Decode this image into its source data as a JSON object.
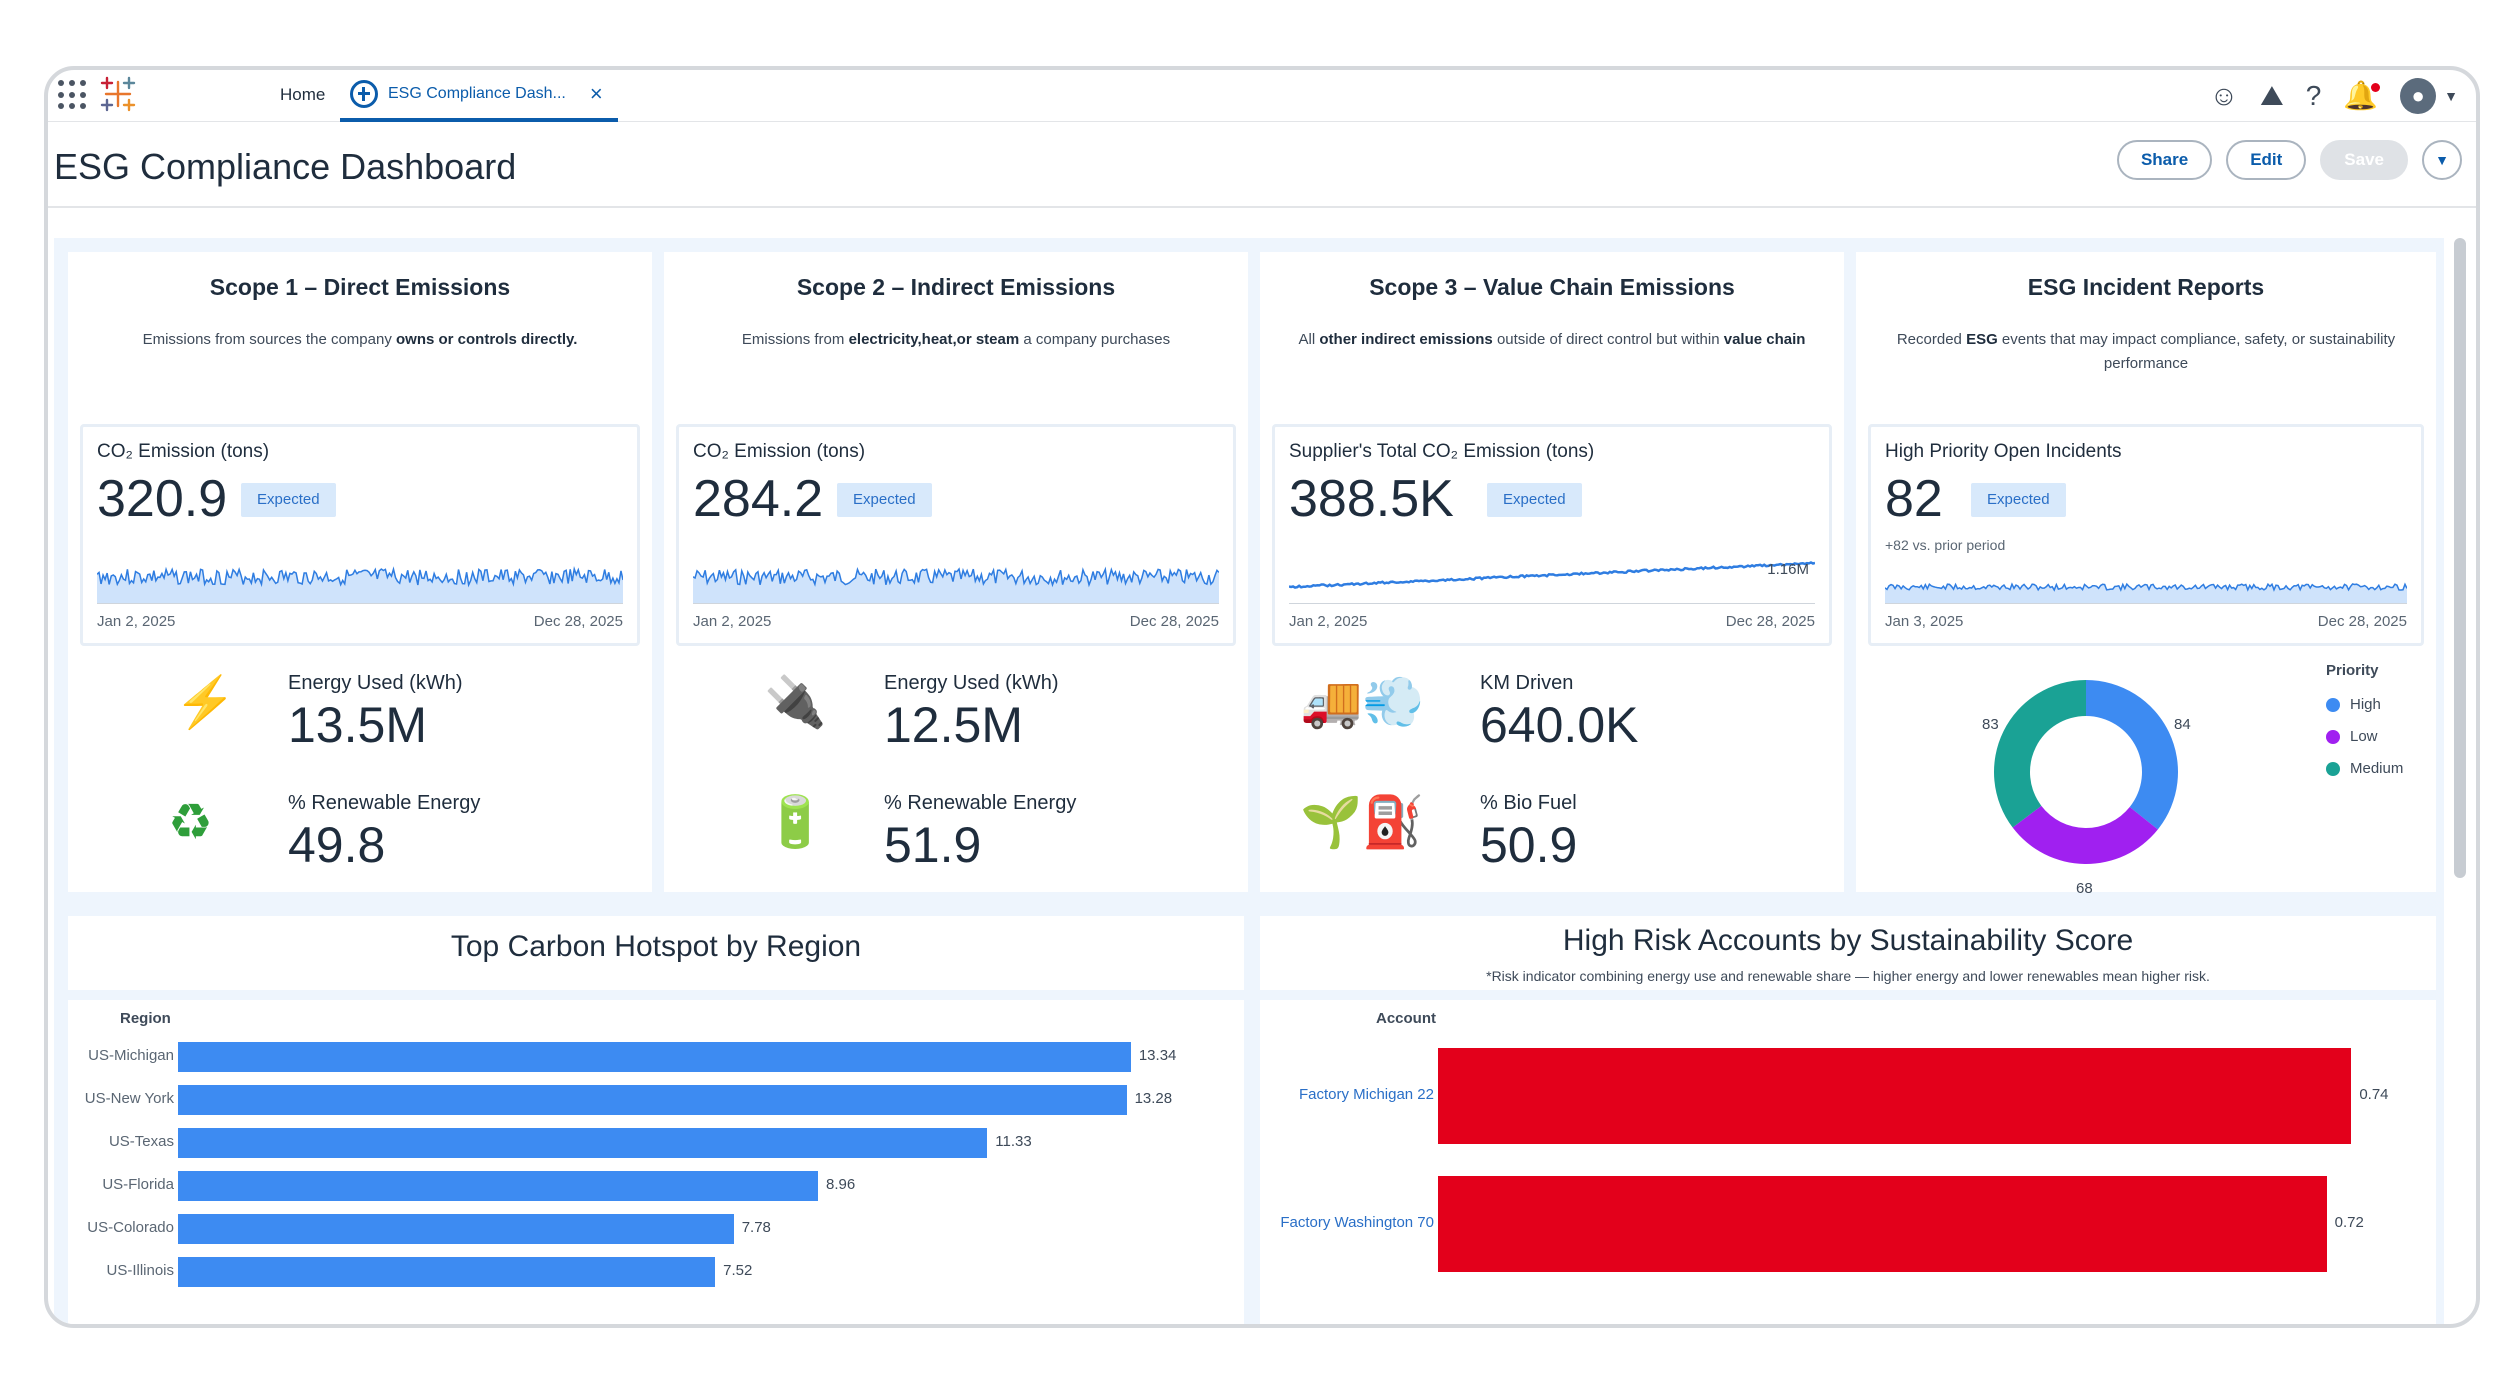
{
  "nav": {
    "home_label": "Home",
    "tab_label": "ESG Compliance Dash...",
    "tab_close": "×"
  },
  "header": {
    "title": "ESG Compliance Dashboard",
    "share_label": "Share",
    "edit_label": "Edit",
    "save_label": "Save"
  },
  "scopes": [
    {
      "title": "Scope 1 – Direct Emissions",
      "desc_html": "Emissions from sources the company <b>owns or controls directly.</b>",
      "kpi_label": "CO₂ Emission (tons)",
      "kpi_value": "320.9",
      "badge": "Expected",
      "date_start": "Jan 2, 2025",
      "date_end": "Dec 28, 2025",
      "stat1_label": "Energy Used (kWh)",
      "stat1_value": "13.5M",
      "stat1_icon": "lightning-icon",
      "stat2_label": "% Renewable Energy",
      "stat2_value": "49.8",
      "stat2_icon": "recycle-icon"
    },
    {
      "title": "Scope 2 – Indirect Emissions",
      "desc_html": "Emissions from <b>electricity,heat,or steam</b> a company purchases",
      "kpi_label": "CO₂ Emission (tons)",
      "kpi_value": "284.2",
      "badge": "Expected",
      "date_start": "Jan 2, 2025",
      "date_end": "Dec 28, 2025",
      "stat1_label": "Energy Used (kWh)",
      "stat1_value": "12.5M",
      "stat1_icon": "plug-icon",
      "stat2_label": "% Renewable Energy",
      "stat2_value": "51.9",
      "stat2_icon": "battery-icon"
    },
    {
      "title": "Scope 3 – Value Chain Emissions",
      "desc_html": "All <b>other indirect emissions</b> outside of direct control but within <b>value chain</b>",
      "kpi_label": "Supplier's Total CO₂ Emission (tons)",
      "kpi_value": "388.5K",
      "badge": "Expected",
      "spark_label": "1.16M",
      "date_start": "Jan 2, 2025",
      "date_end": "Dec 28, 2025",
      "stat1_label": "KM Driven",
      "stat1_value": "640.0K",
      "stat1_icon": "truck-icon",
      "stat2_label": "% Bio Fuel",
      "stat2_value": "50.9",
      "stat2_icon": "fuel-icon"
    },
    {
      "title": "ESG Incident Reports",
      "desc_html": "Recorded <b>ESG</b> events that may impact compliance, safety, or sustainability performance",
      "kpi_label": "High Priority Open Incidents",
      "kpi_value": "82",
      "badge": "Expected",
      "kpi_sub": "+82 vs. prior period",
      "date_start": "Jan 3, 2025",
      "date_end": "Dec 28, 2025"
    }
  ],
  "colors": {
    "accent": "#0b5cab",
    "bar_blue": "#3d8bf2",
    "bar_red": "#e3001b",
    "high": "#3d8bf2",
    "low": "#a020f0",
    "medium": "#1aa295"
  },
  "chart_data": [
    {
      "type": "pie",
      "title": "",
      "legend_title": "Priority",
      "legend_position": "right",
      "categories": [
        "High",
        "Low",
        "Medium"
      ],
      "values": [
        84,
        68,
        83
      ]
    },
    {
      "type": "bar",
      "orientation": "horizontal",
      "title": "Top Carbon Hotspot by Region",
      "ylabel": "Region",
      "categories": [
        "US-Michigan",
        "US-New York",
        "US-Texas",
        "US-Florida",
        "US-Colorado",
        "US-Illinois"
      ],
      "values": [
        13.34,
        13.28,
        11.33,
        8.96,
        7.78,
        7.52
      ],
      "xlim": [
        0,
        14
      ]
    },
    {
      "type": "bar",
      "orientation": "horizontal",
      "title": "High Risk Accounts by Sustainability Score",
      "subtitle": "*Risk indicator combining energy use and renewable share — higher energy and lower renewables mean higher risk.",
      "ylabel": "Account",
      "categories": [
        "Factory Michigan 22",
        "Factory Washington 70"
      ],
      "values": [
        0.74,
        0.72
      ],
      "xlim": [
        0,
        0.76
      ]
    }
  ]
}
